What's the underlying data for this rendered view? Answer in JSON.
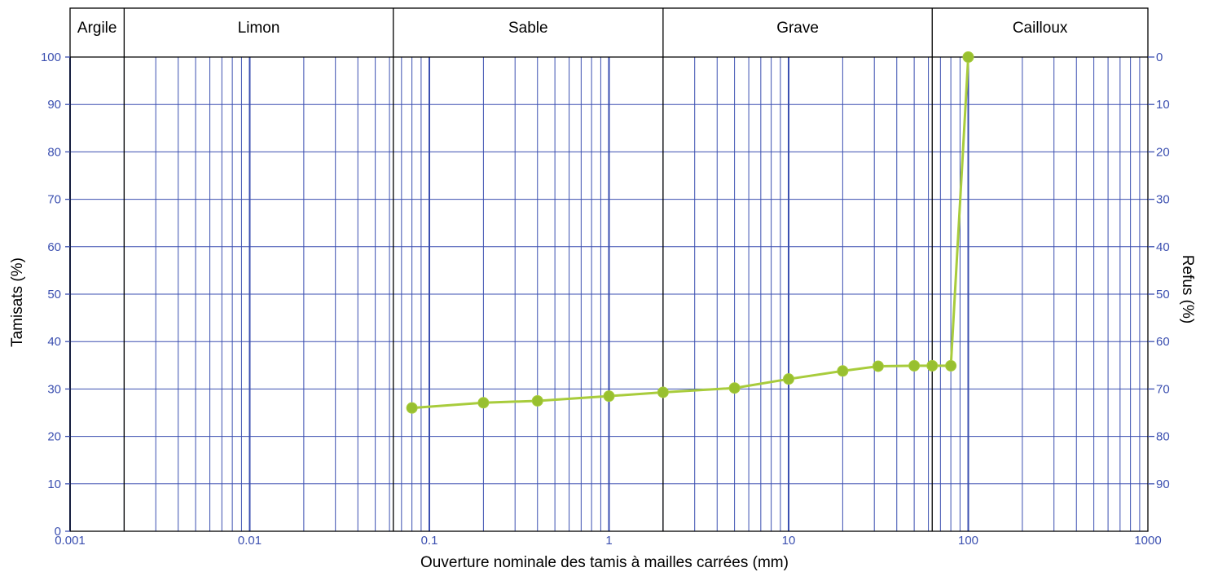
{
  "chart_data": {
    "type": "line",
    "x_scale": "log",
    "xlim": [
      0.001,
      1000
    ],
    "ylim": [
      0,
      100
    ],
    "xlabel": "Ouverture nominale des tamis à mailles carrées (mm)",
    "ylabel": "Tamisats (%)",
    "y2label": "Refus (%)",
    "x_ticks": [
      "0.001",
      "0.01",
      "0.1",
      "1",
      "10",
      "100",
      "1000"
    ],
    "y_ticks": [
      "0",
      "10",
      "20",
      "30",
      "40",
      "50",
      "60",
      "70",
      "80",
      "90",
      "100"
    ],
    "y2_ticks": [
      "0",
      "10",
      "20",
      "30",
      "40",
      "50",
      "60",
      "70",
      "80",
      "90"
    ],
    "grid": true,
    "bands": [
      {
        "label": "Argile",
        "from": 0.001,
        "to": 0.002
      },
      {
        "label": "Limon",
        "from": 0.002,
        "to": 0.063
      },
      {
        "label": "Sable",
        "from": 0.063,
        "to": 2
      },
      {
        "label": "Grave",
        "from": 2,
        "to": 63
      },
      {
        "label": "Cailloux",
        "from": 63,
        "to": 1000
      }
    ],
    "series": [
      {
        "x": [
          0.08,
          0.2,
          0.4,
          1,
          2,
          5,
          10,
          20,
          31.5,
          50,
          63,
          80,
          100
        ],
        "y": [
          26,
          27.1,
          27.5,
          28.5,
          29.3,
          30.2,
          32.1,
          33.8,
          34.8,
          34.9,
          34.9,
          34.9,
          100
        ]
      }
    ],
    "colors": {
      "grid": "#3b4fb0",
      "frame": "#000000",
      "tick_text": "#3b4fb0",
      "series": "#a8cc3c",
      "series_marker": "#98c030"
    }
  }
}
